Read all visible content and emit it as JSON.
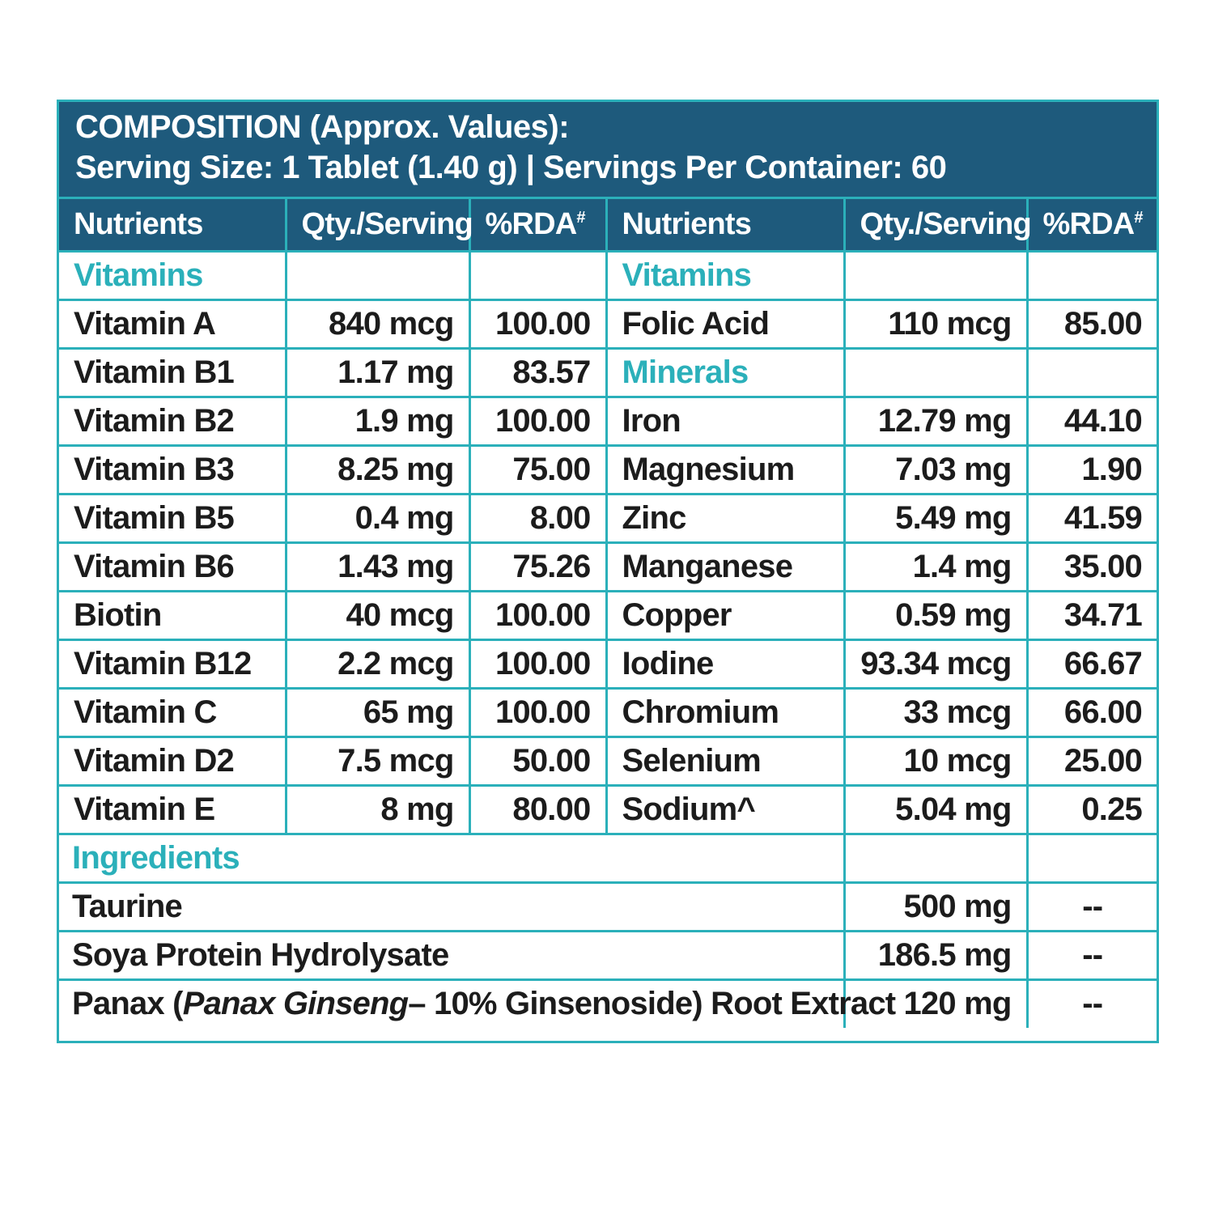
{
  "header": {
    "title": "COMPOSITION (Approx. Values):",
    "serving": "Serving Size: 1 Tablet (1.40 g) | Servings Per Container: 60"
  },
  "columns": {
    "nutrients": "Nutrients",
    "qty": "Qty./Serving",
    "rda": "%RDA",
    "rda_mark": "#"
  },
  "sections": {
    "vitamins": "Vitamins",
    "minerals": "Minerals",
    "ingredients": "Ingredients"
  },
  "left": [
    {
      "name": "Vitamin A",
      "qty": "840 mcg",
      "rda": "100.00"
    },
    {
      "name": "Vitamin B1",
      "qty": "1.17 mg",
      "rda": "83.57"
    },
    {
      "name": "Vitamin B2",
      "qty": "1.9 mg",
      "rda": "100.00"
    },
    {
      "name": "Vitamin B3",
      "qty": "8.25 mg",
      "rda": "75.00"
    },
    {
      "name": "Vitamin B5",
      "qty": "0.4 mg",
      "rda": "8.00"
    },
    {
      "name": "Vitamin B6",
      "qty": "1.43 mg",
      "rda": "75.26"
    },
    {
      "name": "Biotin",
      "qty": "40 mcg",
      "rda": "100.00"
    },
    {
      "name": "Vitamin B12",
      "qty": "2.2 mcg",
      "rda": "100.00"
    },
    {
      "name": "Vitamin C",
      "qty": "65 mg",
      "rda": "100.00"
    },
    {
      "name": "Vitamin D2",
      "qty": "7.5 mcg",
      "rda": "50.00"
    },
    {
      "name": "Vitamin E",
      "qty": "8 mg",
      "rda": "80.00"
    }
  ],
  "right_vitamins": [
    {
      "name": "Folic Acid",
      "qty": "110 mcg",
      "rda": "85.00"
    }
  ],
  "minerals": [
    {
      "name": "Iron",
      "qty": "12.79 mg",
      "rda": "44.10"
    },
    {
      "name": "Magnesium",
      "qty": "7.03 mg",
      "rda": "1.90"
    },
    {
      "name": "Zinc",
      "qty": "5.49 mg",
      "rda": "41.59"
    },
    {
      "name": "Manganese",
      "qty": "1.4 mg",
      "rda": "35.00"
    },
    {
      "name": "Copper",
      "qty": "0.59 mg",
      "rda": "34.71"
    },
    {
      "name": "Iodine",
      "qty": "93.34 mcg",
      "rda": "66.67"
    },
    {
      "name": "Chromium",
      "qty": "33 mcg",
      "rda": "66.00"
    },
    {
      "name": "Selenium",
      "qty": "10 mcg",
      "rda": "25.00"
    },
    {
      "name": "Sodium^",
      "qty": "5.04 mg",
      "rda": "0.25"
    }
  ],
  "ingredients": [
    {
      "name": "Taurine",
      "qty": "500 mg",
      "rda": "--"
    },
    {
      "name": "Soya Protein Hydrolysate",
      "qty": "186.5 mg",
      "rda": "--"
    }
  ],
  "panax": {
    "prefix": "Panax (",
    "italic": "Panax Ginseng",
    "suffix": "– 10% Ginsenoside) Root Extract",
    "qty": "120 mg",
    "rda": "--"
  }
}
